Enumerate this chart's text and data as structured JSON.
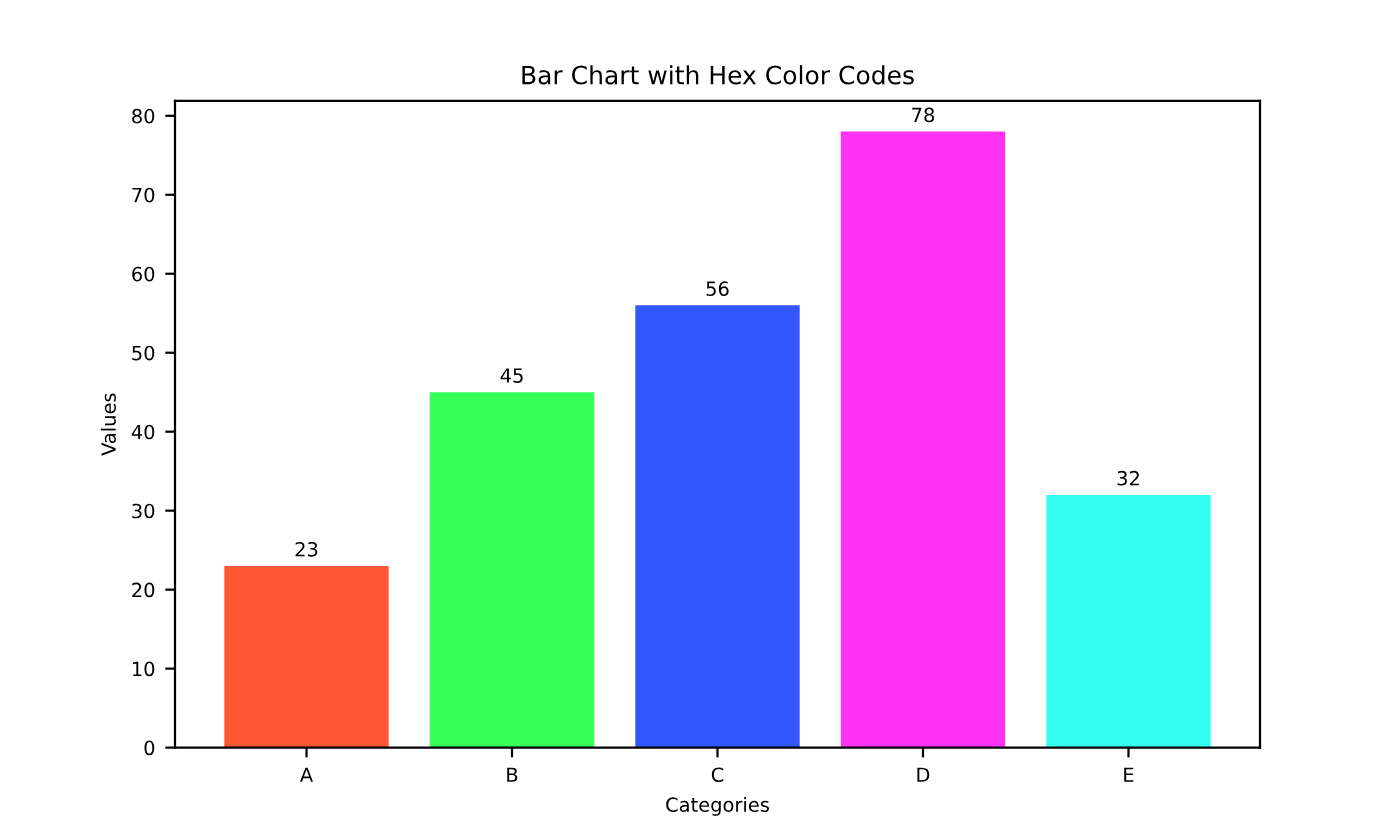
{
  "chart_data": {
    "type": "bar",
    "title": "Bar Chart with Hex Color Codes",
    "xlabel": "Categories",
    "ylabel": "Values",
    "categories": [
      "A",
      "B",
      "C",
      "D",
      "E"
    ],
    "values": [
      23,
      45,
      56,
      78,
      32
    ],
    "colors": [
      "#ff5733",
      "#33ff57",
      "#3357ff",
      "#ff33f1",
      "#33fff1"
    ],
    "ylim": [
      0,
      81.9
    ],
    "yticks": [
      0,
      10,
      20,
      30,
      40,
      50,
      60,
      70,
      80
    ],
    "data_labels": true
  }
}
